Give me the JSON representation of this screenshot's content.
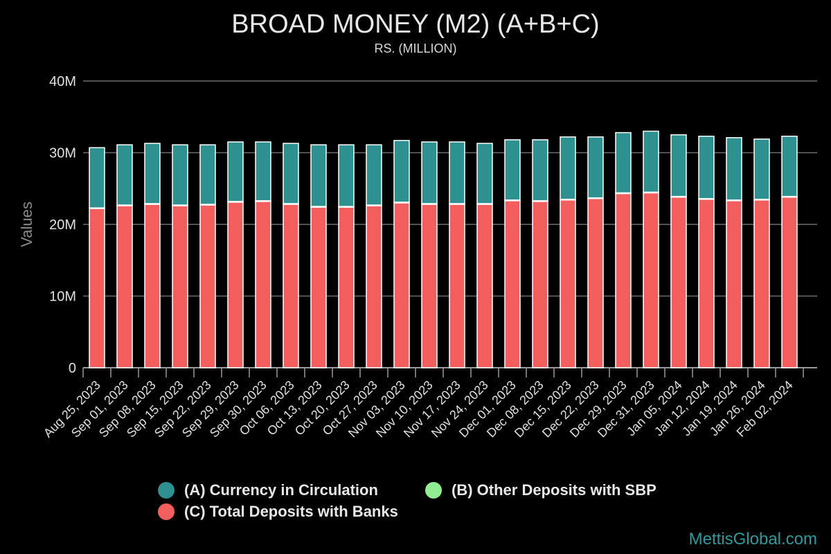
{
  "chart_data": {
    "type": "bar",
    "stacked": true,
    "title": "BROAD MONEY (M2) (A+B+C)",
    "subtitle": "RS. (MILLION)",
    "ylabel": "Values",
    "xlabel": "",
    "ylim": [
      0,
      40000000
    ],
    "yticks": [
      0,
      10000000,
      20000000,
      30000000,
      40000000
    ],
    "ytick_labels": [
      "0",
      "10M",
      "20M",
      "30M",
      "40M"
    ],
    "grid": true,
    "legend_position": "bottom",
    "categories": [
      "Aug 25, 2023",
      "Sep 01, 2023",
      "Sep 08, 2023",
      "Sep 15, 2023",
      "Sep 22, 2023",
      "Sep 29, 2023",
      "Sep 30, 2023",
      "Oct 06, 2023",
      "Oct 13, 2023",
      "Oct 20, 2023",
      "Oct 27, 2023",
      "Nov 03, 2023",
      "Nov 10, 2023",
      "Nov 17, 2023",
      "Nov 24, 2023",
      "Dec 01, 2023",
      "Dec 08, 2023",
      "Dec 15, 2023",
      "Dec 22, 2023",
      "Dec 29, 2023",
      "Dec 31, 2023",
      "Jan 05, 2024",
      "Jan 12, 2024",
      "Jan 19, 2024",
      "Jan 26, 2024",
      "Feb 02, 2024"
    ],
    "series": [
      {
        "name": "(C) Total Deposits with Banks",
        "color": "#f25f5c",
        "values": [
          22200000,
          22600000,
          22800000,
          22600000,
          22700000,
          23100000,
          23200000,
          22800000,
          22400000,
          22400000,
          22600000,
          23000000,
          22800000,
          22800000,
          22800000,
          23300000,
          23200000,
          23400000,
          23600000,
          24300000,
          24400000,
          23800000,
          23500000,
          23300000,
          23400000,
          23800000
        ]
      },
      {
        "name": "(B) Other Deposits with SBP",
        "color": "#90ee90",
        "values": [
          100000,
          100000,
          100000,
          100000,
          100000,
          100000,
          100000,
          100000,
          100000,
          100000,
          100000,
          100000,
          100000,
          100000,
          100000,
          100000,
          100000,
          100000,
          100000,
          100000,
          100000,
          100000,
          100000,
          100000,
          100000,
          100000
        ]
      },
      {
        "name": "(A) Currency in Circulation",
        "color": "#2e9190",
        "values": [
          8400000,
          8400000,
          8400000,
          8400000,
          8300000,
          8300000,
          8200000,
          8400000,
          8600000,
          8600000,
          8400000,
          8600000,
          8600000,
          8600000,
          8400000,
          8400000,
          8500000,
          8700000,
          8500000,
          8400000,
          8500000,
          8600000,
          8700000,
          8700000,
          8400000,
          8400000
        ]
      }
    ]
  },
  "legend": {
    "items": [
      {
        "label": "(A) Currency in Circulation",
        "color": "#2e9190"
      },
      {
        "label": "(B) Other Deposits with SBP",
        "color": "#90ee90"
      },
      {
        "label": "(C) Total Deposits with Banks",
        "color": "#f25f5c"
      }
    ]
  },
  "watermark": "MettisGlobal.com"
}
